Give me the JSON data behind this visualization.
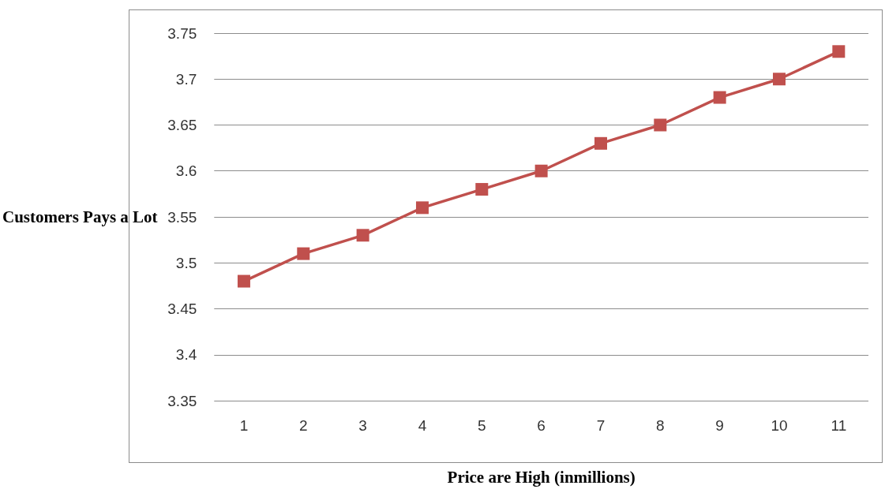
{
  "chart_data": {
    "type": "line",
    "xlabel": "Price are High (inmillions)",
    "ylabel": "Customers Pays a Lot",
    "categories": [
      "1",
      "2",
      "3",
      "4",
      "5",
      "6",
      "7",
      "8",
      "9",
      "10",
      "11"
    ],
    "series": [
      {
        "color": "#c0504d",
        "values": [
          3.48,
          3.51,
          3.53,
          3.56,
          3.58,
          3.6,
          3.63,
          3.65,
          3.68,
          3.7,
          3.73
        ]
      }
    ],
    "ylim": [
      3.35,
      3.75
    ],
    "yticks": [
      3.35,
      3.4,
      3.45,
      3.5,
      3.55,
      3.6,
      3.65,
      3.7,
      3.75
    ],
    "grid": "y",
    "marker": "square",
    "line_style": "solid"
  }
}
